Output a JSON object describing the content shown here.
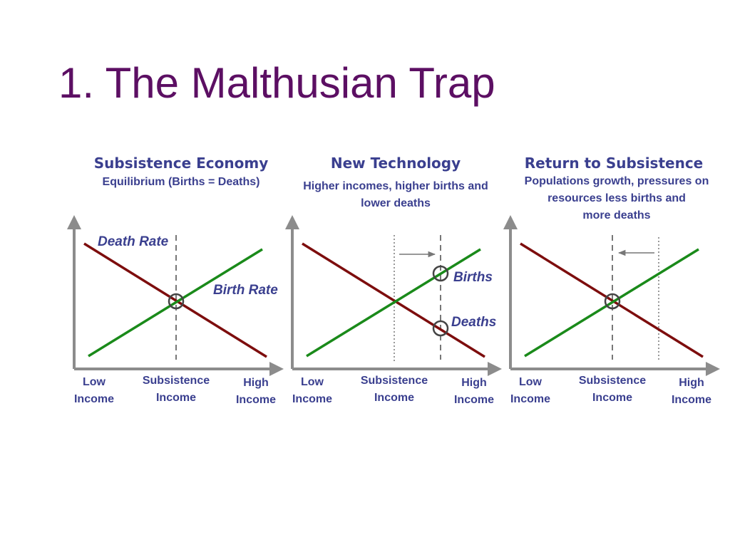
{
  "slide": {
    "title": "1. The Malthusian Trap"
  },
  "colors": {
    "title": "#5c0f63",
    "text": "#3a3f8f",
    "death_rate": "#7d0d0d",
    "birth_rate": "#1a8a1a",
    "axis": "#8c8c8c",
    "marker": "#444444"
  },
  "panels": [
    {
      "title": "Subsistence Economy",
      "subtitle": "Equilibrium (Births = Deaths)",
      "curve_labels": {
        "death": "Death Rate",
        "birth": "Birth Rate"
      },
      "axis": {
        "low": "Low\nIncome",
        "mid": "Subsistence\nIncome",
        "high": "High\nIncome"
      },
      "shift_arrow": "none"
    },
    {
      "title": "New Technology",
      "subtitle": "Higher incomes, higher births and\nlower deaths",
      "curve_labels": {
        "births": "Births",
        "deaths": "Deaths"
      },
      "axis": {
        "low": "Low\nIncome",
        "mid": "Subsistence\nIncome",
        "high": "High\nIncome"
      },
      "shift_arrow": "right"
    },
    {
      "title": "Return to Subsistence",
      "subtitle": "Populations growth, pressures on\nresources less births and\nmore deaths",
      "axis": {
        "low": "Low\nIncome",
        "mid": "Subsistence\nIncome",
        "high": "High\nIncome"
      },
      "shift_arrow": "left"
    }
  ]
}
